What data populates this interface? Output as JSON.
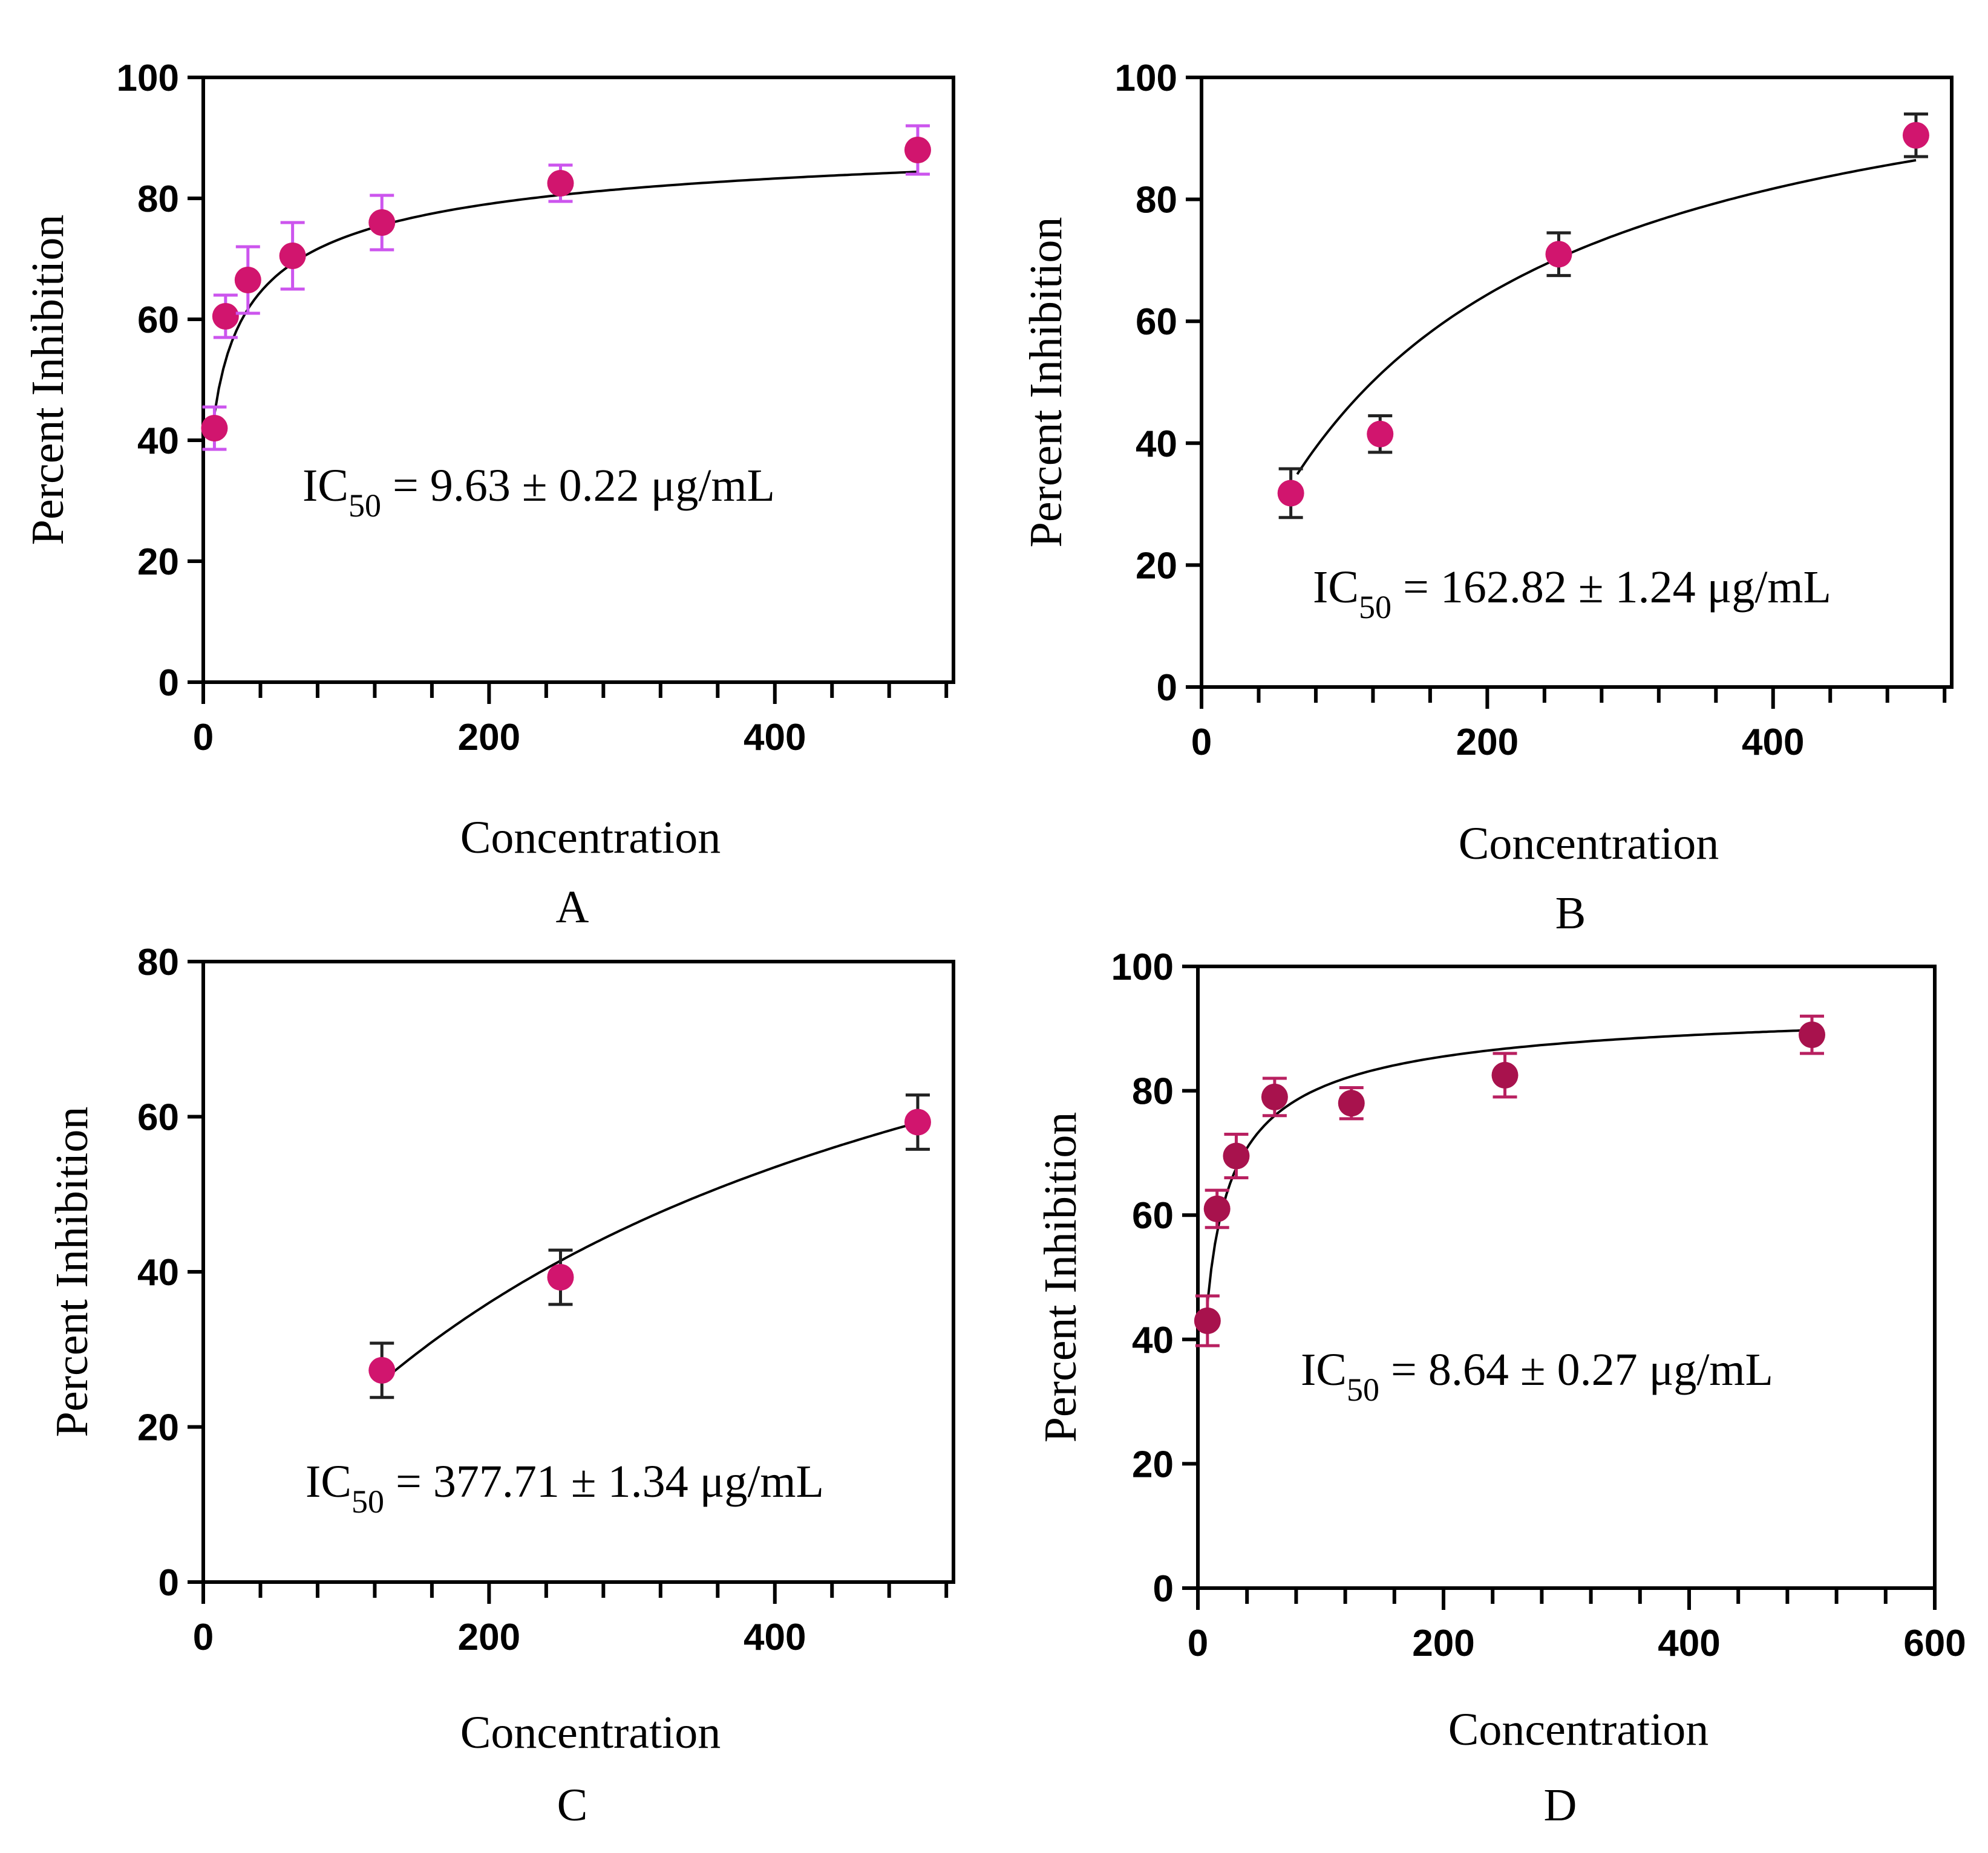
{
  "chart_data": [
    {
      "type": "scatter",
      "panel": "A",
      "xlabel": "Concentration",
      "ylabel": "Percent Inhibition",
      "xlim": [
        0,
        525
      ],
      "ylim": [
        0,
        100
      ],
      "xticks": [
        0,
        200,
        400
      ],
      "yticks": [
        0,
        20,
        40,
        60,
        80,
        100
      ],
      "x": [
        7.8,
        15.6,
        31.25,
        62.5,
        125,
        250,
        500
      ],
      "y": [
        42,
        60.5,
        66.5,
        70.5,
        76,
        82.5,
        88
      ],
      "err": [
        3.5,
        3.5,
        5.5,
        5.5,
        4.5,
        3,
        4
      ],
      "marker_color": "#d1156e",
      "error_color": "#cc55ee",
      "fit": {
        "model": "log",
        "x_start": 7.8,
        "x_end": 500,
        "top": 94,
        "ec50": 9.63,
        "hill": 0.55
      },
      "annotation": {
        "prefix": "IC",
        "subscript": "50",
        "value": " = 9.63 ± 0.22 μg/mL"
      }
    },
    {
      "type": "scatter",
      "panel": "B",
      "xlabel": "Concentration",
      "ylabel": "Percent Inhibition",
      "xlim": [
        0,
        525
      ],
      "ylim": [
        0,
        100
      ],
      "xticks": [
        0,
        200,
        400
      ],
      "yticks": [
        0,
        20,
        40,
        60,
        80,
        100
      ],
      "x": [
        62.5,
        125,
        250,
        500
      ],
      "y": [
        31.8,
        41.5,
        71,
        90.5
      ],
      "err": [
        4,
        3,
        3.5,
        3.5
      ],
      "marker_color": "#d1156e",
      "error_color": "#222222",
      "fit": {
        "model": "hyp",
        "x_start": 67,
        "x_end": 500,
        "top": 112,
        "ec50": 148
      },
      "annotation": {
        "prefix": "IC",
        "subscript": "50",
        "value": " = 162.82 ± 1.24 μg/mL"
      }
    },
    {
      "type": "scatter",
      "panel": "C",
      "xlabel": "Concentration",
      "ylabel": "Percent Inhibition",
      "xlim": [
        0,
        525
      ],
      "ylim": [
        0,
        80
      ],
      "xticks": [
        0,
        200,
        400
      ],
      "yticks": [
        0,
        20,
        40,
        60,
        80
      ],
      "x": [
        125,
        250,
        500
      ],
      "y": [
        27.3,
        39.3,
        59.3
      ],
      "err": [
        3.5,
        3.5,
        3.5
      ],
      "marker_color": "#d1156e",
      "error_color": "#222222",
      "fit": {
        "model": "hyp",
        "x_start": 125,
        "x_end": 500,
        "top": 104,
        "ec50": 377.71
      },
      "annotation": {
        "prefix": "IC",
        "subscript": "50",
        "value": " = 377.71 ± 1.34 μg/mL"
      }
    },
    {
      "type": "scatter",
      "panel": "D",
      "xlabel": "Concentration",
      "ylabel": "Percent Inhibition",
      "xlim": [
        0,
        600
      ],
      "ylim": [
        0,
        100
      ],
      "xticks": [
        0,
        200,
        400,
        600
      ],
      "yticks": [
        0,
        20,
        40,
        60,
        80,
        100
      ],
      "x": [
        7.8,
        15.6,
        31.25,
        62.5,
        125,
        250,
        500
      ],
      "y": [
        43,
        61,
        69.5,
        79,
        78,
        82.5,
        89
      ],
      "err": [
        4,
        3,
        3.5,
        3,
        2.5,
        3.5,
        3
      ],
      "marker_color": "#a8124d",
      "error_color": "#b82060",
      "fit": {
        "model": "log",
        "x_start": 7.8,
        "x_end": 500,
        "top": 95,
        "ec50": 8.64,
        "hill": 0.7
      },
      "annotation": {
        "prefix": "IC",
        "subscript": "50",
        "value": " = 8.64 ± 0.27 μg/mL"
      }
    }
  ]
}
